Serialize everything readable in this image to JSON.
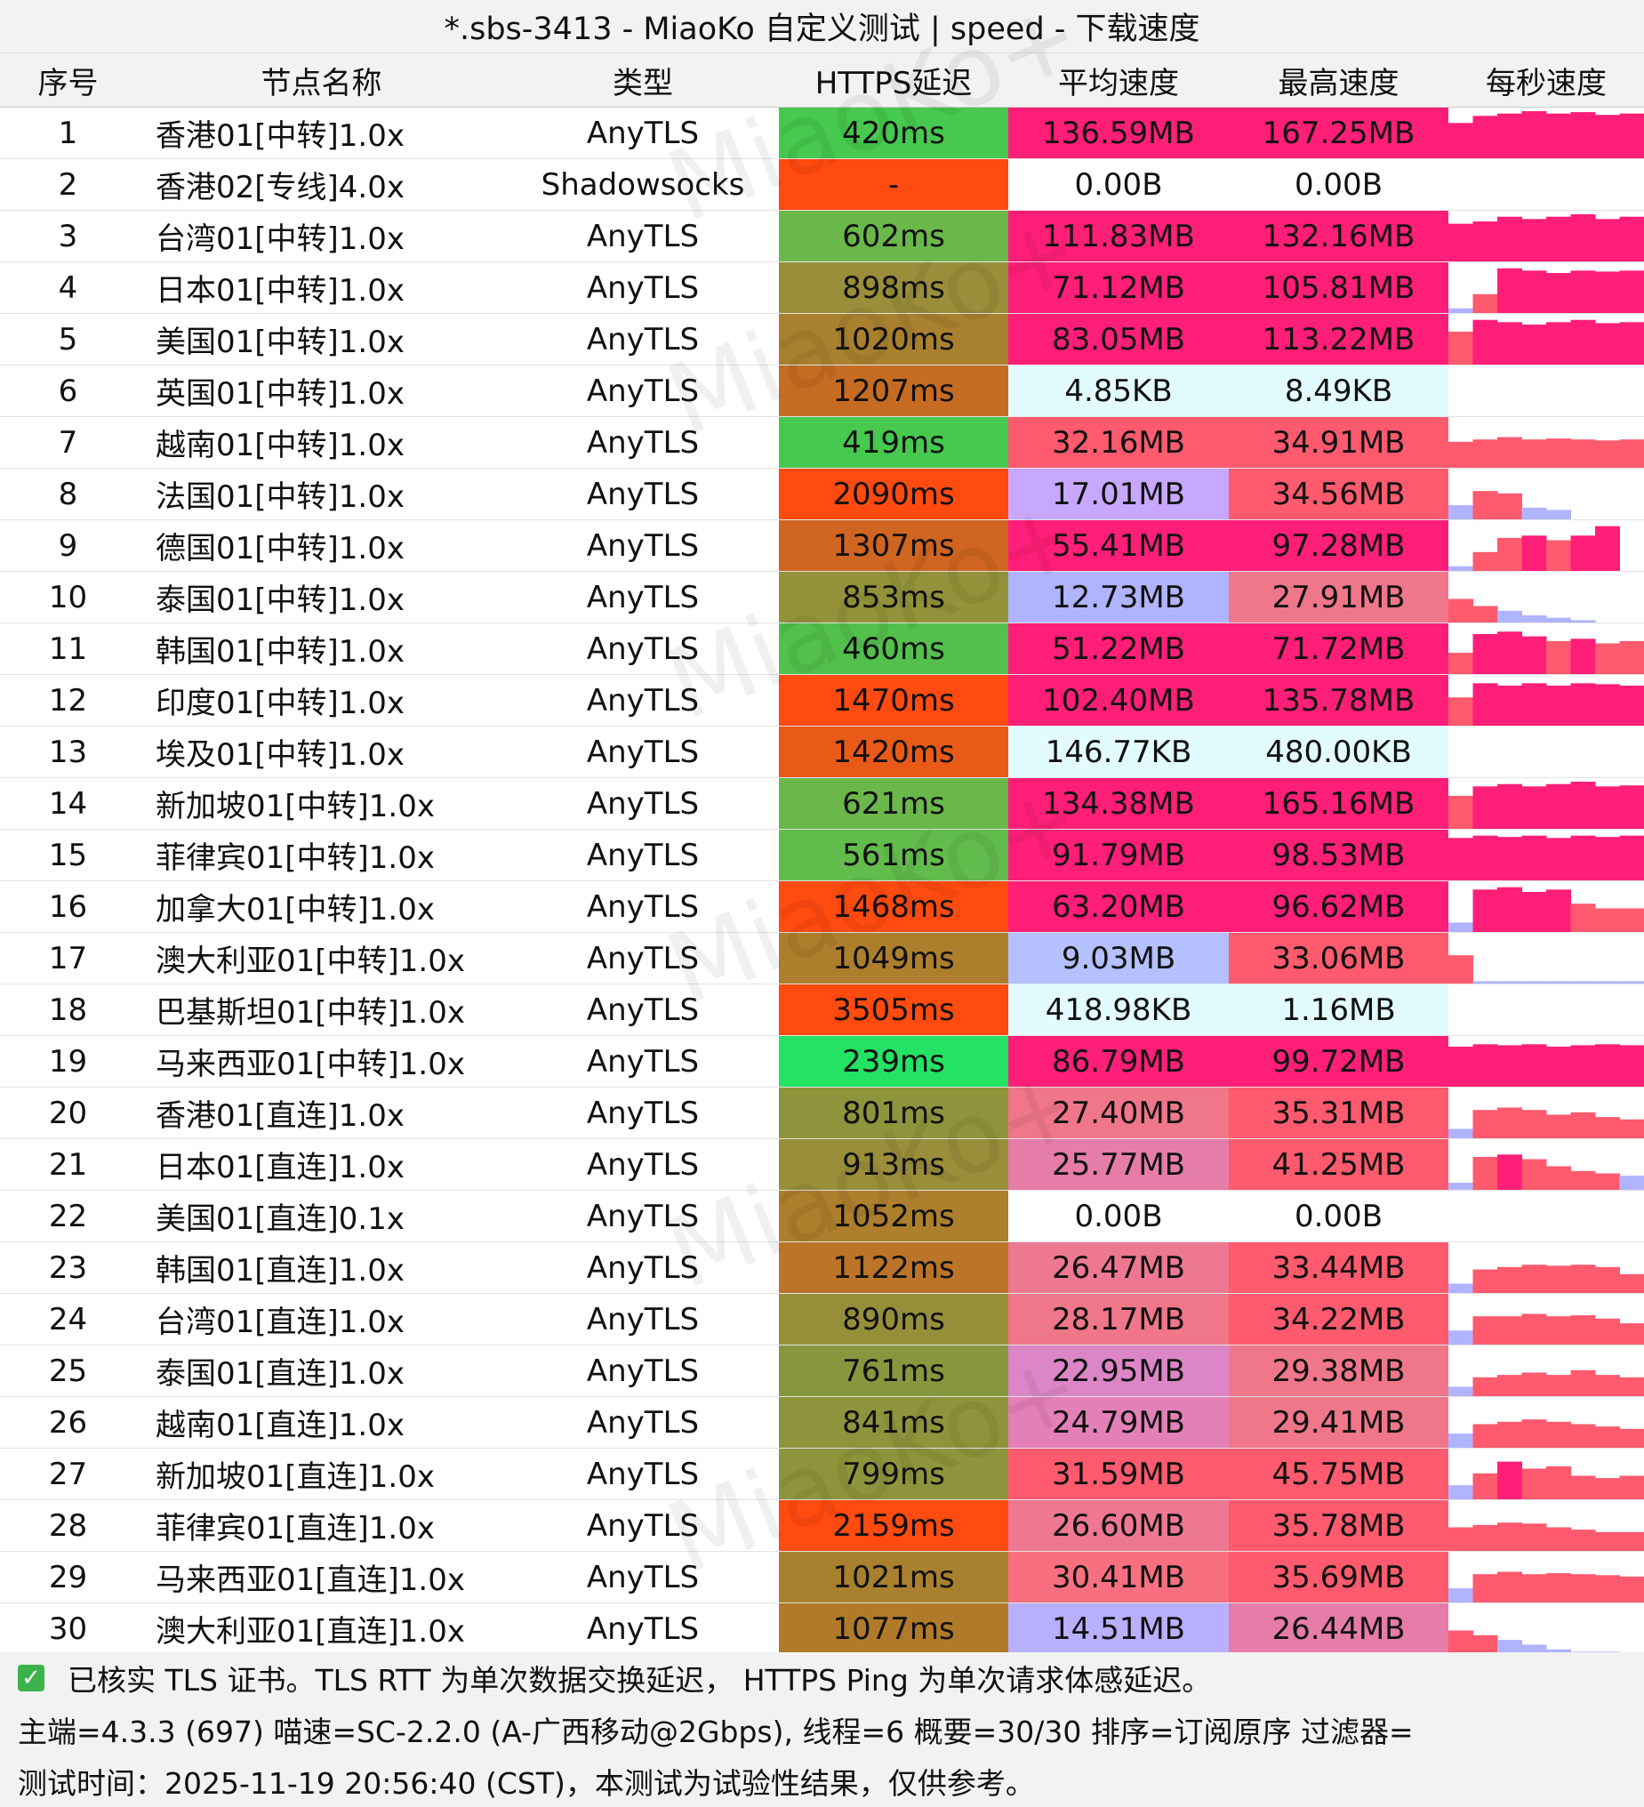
{
  "title": "*.sbs-3413 - MiaoKo 自定义测试 | speed - 下载速度",
  "watermark": "MiaoKo+",
  "headers": [
    "序号",
    "节点名称",
    "类型",
    "HTTPS延迟",
    "平均速度",
    "最高速度",
    "每秒速度"
  ],
  "rows": [
    {
      "no": "1",
      "name": "香港01[中转]1.0x",
      "type": "AnyTLS",
      "latency": "420ms",
      "avg": "136.59MB",
      "max": "167.25MB",
      "lat_color": "#47c84e",
      "avg_color": "#ff1e78",
      "max_color": "#ff1e78",
      "bars": [
        0.75,
        0.9,
        0.95,
        1.0,
        0.95,
        0.98,
        0.92,
        0.95
      ]
    },
    {
      "no": "2",
      "name": "香港02[专线]4.0x",
      "type": "Shadowsocks",
      "latency": "-",
      "avg": "0.00B",
      "max": "0.00B",
      "lat_color": "#ff4a10",
      "avg_color": "#ffffff",
      "max_color": "#ffffff",
      "bars": []
    },
    {
      "no": "3",
      "name": "台湾01[中转]1.0x",
      "type": "AnyTLS",
      "latency": "602ms",
      "avg": "111.83MB",
      "max": "132.16MB",
      "lat_color": "#6ab84a",
      "avg_color": "#ff1e78",
      "max_color": "#ff1e78",
      "bars": [
        0.8,
        0.85,
        0.95,
        0.9,
        0.95,
        1.0,
        0.9,
        0.95
      ]
    },
    {
      "no": "4",
      "name": "日本01[中转]1.0x",
      "type": "AnyTLS",
      "latency": "898ms",
      "avg": "71.12MB",
      "max": "105.81MB",
      "lat_color": "#9a8e3a",
      "avg_color": "#ff1e78",
      "max_color": "#ff1e78",
      "bars": [
        0.1,
        0.4,
        0.95,
        0.9,
        0.85,
        0.9,
        0.88,
        0.9
      ]
    },
    {
      "no": "5",
      "name": "美国01[中转]1.0x",
      "type": "AnyTLS",
      "latency": "1020ms",
      "avg": "83.05MB",
      "max": "113.22MB",
      "lat_color": "#a8802e",
      "avg_color": "#ff1e78",
      "max_color": "#ff1e78",
      "bars": [
        0.7,
        0.95,
        0.9,
        0.85,
        0.9,
        0.95,
        0.88,
        0.9
      ]
    },
    {
      "no": "6",
      "name": "英国01[中转]1.0x",
      "type": "AnyTLS",
      "latency": "1207ms",
      "avg": "4.85KB",
      "max": "8.49KB",
      "lat_color": "#c56c22",
      "avg_color": "#e2fbff",
      "max_color": "#e2fbff",
      "bars": []
    },
    {
      "no": "7",
      "name": "越南01[中转]1.0x",
      "type": "AnyTLS",
      "latency": "419ms",
      "avg": "32.16MB",
      "max": "34.91MB",
      "lat_color": "#47c84e",
      "avg_color": "#ff5a6e",
      "max_color": "#ff5a6e",
      "bars": [
        0.55,
        0.6,
        0.65,
        0.6,
        0.62,
        0.6,
        0.58,
        0.6
      ]
    },
    {
      "no": "8",
      "name": "法国01[中转]1.0x",
      "type": "AnyTLS",
      "latency": "2090ms",
      "avg": "17.01MB",
      "max": "34.56MB",
      "lat_color": "#ff4a10",
      "avg_color": "#c8a8ff",
      "max_color": "#ff5a6e",
      "bars": [
        0.3,
        0.6,
        0.55,
        0.25,
        0.2,
        0,
        0,
        0
      ]
    },
    {
      "no": "9",
      "name": "德国01[中转]1.0x",
      "type": "AnyTLS",
      "latency": "1307ms",
      "avg": "55.41MB",
      "max": "97.28MB",
      "lat_color": "#cf6520",
      "avg_color": "#ff1e78",
      "max_color": "#ff1e78",
      "bars": [
        0.1,
        0.4,
        0.7,
        0.75,
        0.65,
        0.75,
        0.95,
        0
      ]
    },
    {
      "no": "10",
      "name": "泰国01[中转]1.0x",
      "type": "AnyTLS",
      "latency": "853ms",
      "avg": "12.73MB",
      "max": "27.91MB",
      "lat_color": "#93923a",
      "avg_color": "#b0b4ff",
      "max_color": "#f0768a",
      "bars": [
        0.5,
        0.35,
        0.25,
        0.15,
        0.1,
        0.05,
        0,
        0
      ]
    },
    {
      "no": "11",
      "name": "韩国01[中转]1.0x",
      "type": "AnyTLS",
      "latency": "460ms",
      "avg": "51.22MB",
      "max": "71.72MB",
      "lat_color": "#53c04c",
      "avg_color": "#ff1e78",
      "max_color": "#ff1e78",
      "bars": [
        0.45,
        0.85,
        0.9,
        0.8,
        0.7,
        0.75,
        0.65,
        0.7
      ]
    },
    {
      "no": "12",
      "name": "印度01[中转]1.0x",
      "type": "AnyTLS",
      "latency": "1470ms",
      "avg": "102.40MB",
      "max": "135.78MB",
      "lat_color": "#ff4a10",
      "avg_color": "#ff1e78",
      "max_color": "#ff1e78",
      "bars": [
        0.6,
        0.9,
        0.85,
        0.9,
        0.85,
        0.9,
        0.88,
        0.85
      ]
    },
    {
      "no": "13",
      "name": "埃及01[中转]1.0x",
      "type": "AnyTLS",
      "latency": "1420ms",
      "avg": "146.77KB",
      "max": "480.00KB",
      "lat_color": "#e95a18",
      "avg_color": "#e2fbff",
      "max_color": "#e2fbff",
      "bars": []
    },
    {
      "no": "14",
      "name": "新加坡01[中转]1.0x",
      "type": "AnyTLS",
      "latency": "621ms",
      "avg": "134.38MB",
      "max": "165.16MB",
      "lat_color": "#6ab84a",
      "avg_color": "#ff1e78",
      "max_color": "#ff1e78",
      "bars": [
        0.7,
        0.9,
        0.95,
        0.9,
        0.95,
        1.0,
        0.9,
        0.92
      ]
    },
    {
      "no": "15",
      "name": "菲律宾01[中转]1.0x",
      "type": "AnyTLS",
      "latency": "561ms",
      "avg": "91.79MB",
      "max": "98.53MB",
      "lat_color": "#62bc4c",
      "avg_color": "#ff1e78",
      "max_color": "#ff1e78",
      "bars": [
        0.9,
        0.95,
        0.92,
        0.95,
        0.9,
        0.95,
        0.92,
        0.95
      ]
    },
    {
      "no": "16",
      "name": "加拿大01[中转]1.0x",
      "type": "AnyTLS",
      "latency": "1468ms",
      "avg": "63.20MB",
      "max": "96.62MB",
      "lat_color": "#ff4a10",
      "avg_color": "#ff1e78",
      "max_color": "#ff1e78",
      "bars": [
        0.2,
        0.9,
        0.95,
        0.85,
        0.9,
        0.6,
        0.5,
        0.5
      ]
    },
    {
      "no": "17",
      "name": "澳大利亚01[中转]1.0x",
      "type": "AnyTLS",
      "latency": "1049ms",
      "avg": "9.03MB",
      "max": "33.06MB",
      "lat_color": "#ad7e2c",
      "avg_color": "#b4c0ff",
      "max_color": "#ff5a6e",
      "bars": [
        0.6,
        0.05,
        0.05,
        0.05,
        0.05,
        0.05,
        0.05,
        0.05
      ]
    },
    {
      "no": "18",
      "name": "巴基斯坦01[中转]1.0x",
      "type": "AnyTLS",
      "latency": "3505ms",
      "avg": "418.98KB",
      "max": "1.16MB",
      "lat_color": "#ff4a10",
      "avg_color": "#e2fbff",
      "max_color": "#e2fbff",
      "bars": []
    },
    {
      "no": "19",
      "name": "马来西亚01[中转]1.0x",
      "type": "AnyTLS",
      "latency": "239ms",
      "avg": "86.79MB",
      "max": "99.72MB",
      "lat_color": "#23e264",
      "avg_color": "#ff1e78",
      "max_color": "#ff1e78",
      "bars": [
        0.85,
        0.9,
        0.88,
        0.9,
        0.85,
        0.88,
        0.9,
        0.88
      ]
    },
    {
      "no": "20",
      "name": "香港01[直连]1.0x",
      "type": "AnyTLS",
      "latency": "801ms",
      "avg": "27.40MB",
      "max": "35.31MB",
      "lat_color": "#8e943b",
      "avg_color": "#f0768a",
      "max_color": "#ff5a6e",
      "bars": [
        0.2,
        0.6,
        0.65,
        0.6,
        0.5,
        0.55,
        0.45,
        0.4
      ]
    },
    {
      "no": "21",
      "name": "日本01[直连]1.0x",
      "type": "AnyTLS",
      "latency": "913ms",
      "avg": "25.77MB",
      "max": "41.25MB",
      "lat_color": "#9a8e3a",
      "avg_color": "#e67ca8",
      "max_color": "#ff5a6e",
      "bars": [
        0.15,
        0.7,
        0.75,
        0.65,
        0.5,
        0.4,
        0.35,
        0.3
      ]
    },
    {
      "no": "22",
      "name": "美国01[直连]0.1x",
      "type": "AnyTLS",
      "latency": "1052ms",
      "avg": "0.00B",
      "max": "0.00B",
      "lat_color": "#ad7e2c",
      "avg_color": "#ffffff",
      "max_color": "#ffffff",
      "bars": []
    },
    {
      "no": "23",
      "name": "韩国01[直连]1.0x",
      "type": "AnyTLS",
      "latency": "1122ms",
      "avg": "26.47MB",
      "max": "33.44MB",
      "lat_color": "#bb7428",
      "avg_color": "#ee7892",
      "max_color": "#ff5a6e",
      "bars": [
        0.2,
        0.5,
        0.55,
        0.6,
        0.58,
        0.6,
        0.55,
        0.4
      ]
    },
    {
      "no": "24",
      "name": "台湾01[直连]1.0x",
      "type": "AnyTLS",
      "latency": "890ms",
      "avg": "28.17MB",
      "max": "34.22MB",
      "lat_color": "#968f3a",
      "avg_color": "#f0768a",
      "max_color": "#ff5a6e",
      "bars": [
        0.3,
        0.6,
        0.6,
        0.65,
        0.6,
        0.62,
        0.55,
        0.45
      ]
    },
    {
      "no": "25",
      "name": "泰国01[直连]1.0x",
      "type": "AnyTLS",
      "latency": "761ms",
      "avg": "22.95MB",
      "max": "29.38MB",
      "lat_color": "#86973d",
      "avg_color": "#dc86c8",
      "max_color": "#f0768a",
      "bars": [
        0.2,
        0.4,
        0.45,
        0.5,
        0.45,
        0.55,
        0.45,
        0.4
      ]
    },
    {
      "no": "26",
      "name": "越南01[直连]1.0x",
      "type": "AnyTLS",
      "latency": "841ms",
      "avg": "24.79MB",
      "max": "29.41MB",
      "lat_color": "#8e943b",
      "avg_color": "#e480b8",
      "max_color": "#f0768a",
      "bars": [
        0.3,
        0.5,
        0.55,
        0.6,
        0.55,
        0.5,
        0.45,
        0.4
      ]
    },
    {
      "no": "27",
      "name": "新加坡01[直连]1.0x",
      "type": "AnyTLS",
      "latency": "799ms",
      "avg": "31.59MB",
      "max": "45.75MB",
      "lat_color": "#8e943b",
      "avg_color": "#ff5a6e",
      "max_color": "#ff5a6e",
      "bars": [
        0.3,
        0.55,
        0.8,
        0.65,
        0.7,
        0.5,
        0.45,
        0.5
      ]
    },
    {
      "no": "28",
      "name": "菲律宾01[直连]1.0x",
      "type": "AnyTLS",
      "latency": "2159ms",
      "avg": "26.60MB",
      "max": "35.78MB",
      "lat_color": "#ff4a10",
      "avg_color": "#ee7892",
      "max_color": "#ff5a6e",
      "bars": [
        0.5,
        0.55,
        0.6,
        0.58,
        0.5,
        0.45,
        0.4,
        0.4
      ]
    },
    {
      "no": "29",
      "name": "马来西亚01[直连]1.0x",
      "type": "AnyTLS",
      "latency": "1021ms",
      "avg": "30.41MB",
      "max": "35.69MB",
      "lat_color": "#a8802e",
      "avg_color": "#f87080",
      "max_color": "#ff5a6e",
      "bars": [
        0.3,
        0.6,
        0.65,
        0.6,
        0.62,
        0.6,
        0.58,
        0.55
      ]
    },
    {
      "no": "30",
      "name": "澳大利亚01[直连]1.0x",
      "type": "AnyTLS",
      "latency": "1077ms",
      "avg": "14.51MB",
      "max": "26.44MB",
      "lat_color": "#b07a2a",
      "avg_color": "#b8b0ff",
      "max_color": "#e67ca8",
      "bars": [
        0.5,
        0.4,
        0.3,
        0.2,
        0.1,
        0.05,
        0.05,
        0
      ]
    }
  ],
  "footer": {
    "tls_note": "已核实 TLS 证书。TLS RTT 为单次数据交换延迟， HTTPS Ping 为单次请求体感延迟。",
    "info": "主端=4.3.3 (697) 喵速=SC-2.2.0 (A-广西移动@2Gbps), 线程=6 概要=30/30 排序=订阅原序 过滤器=",
    "time": "测试时间：2025-11-19 20:56:40 (CST)，本测试为试验性结果，仅供参考。"
  },
  "colors": {
    "check": "#3cb34a",
    "header_bg": "#f2f2f2",
    "spark_hi": "#ff1e78",
    "spark_mid": "#ff5a6e",
    "spark_low": "#b0b4ff"
  }
}
